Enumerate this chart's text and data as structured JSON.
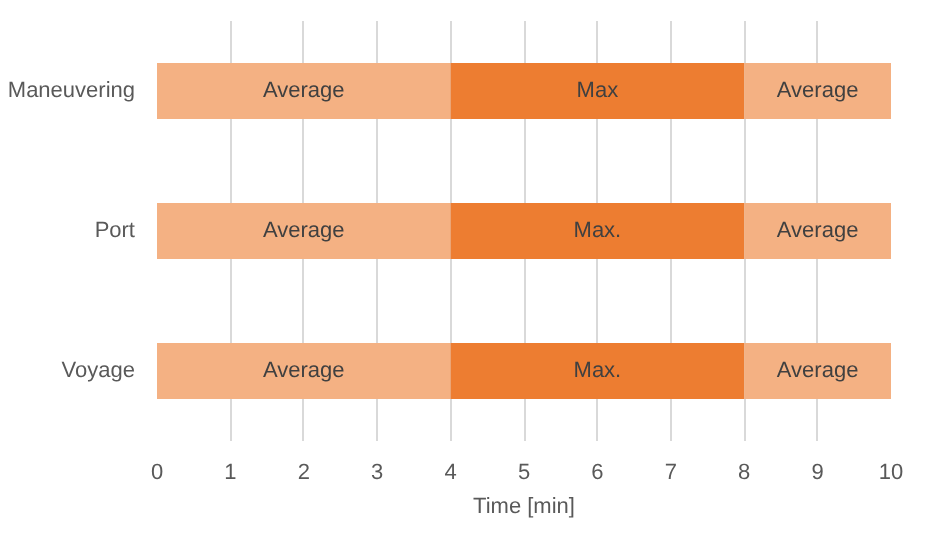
{
  "chart_data": {
    "type": "bar",
    "orientation": "horizontal",
    "stacked": true,
    "categories": [
      "Maneuvering",
      "Port",
      "Voyage"
    ],
    "xlabel": "Time [min]",
    "xlim": [
      0,
      10
    ],
    "xticks": [
      0,
      1,
      2,
      3,
      4,
      5,
      6,
      7,
      8,
      9,
      10
    ],
    "grid": "x",
    "series": [
      {
        "color": "#f4b183",
        "values": [
          4,
          4,
          4
        ],
        "value_labels": [
          "Average",
          "Average",
          "Average"
        ]
      },
      {
        "color": "#ed7d31",
        "values": [
          4,
          4,
          4
        ],
        "value_labels": [
          "Max",
          "Max.",
          "Max."
        ]
      },
      {
        "color": "#f4b183",
        "values": [
          2,
          2,
          2
        ],
        "value_labels": [
          "Average",
          "Average",
          "Average"
        ]
      }
    ]
  }
}
